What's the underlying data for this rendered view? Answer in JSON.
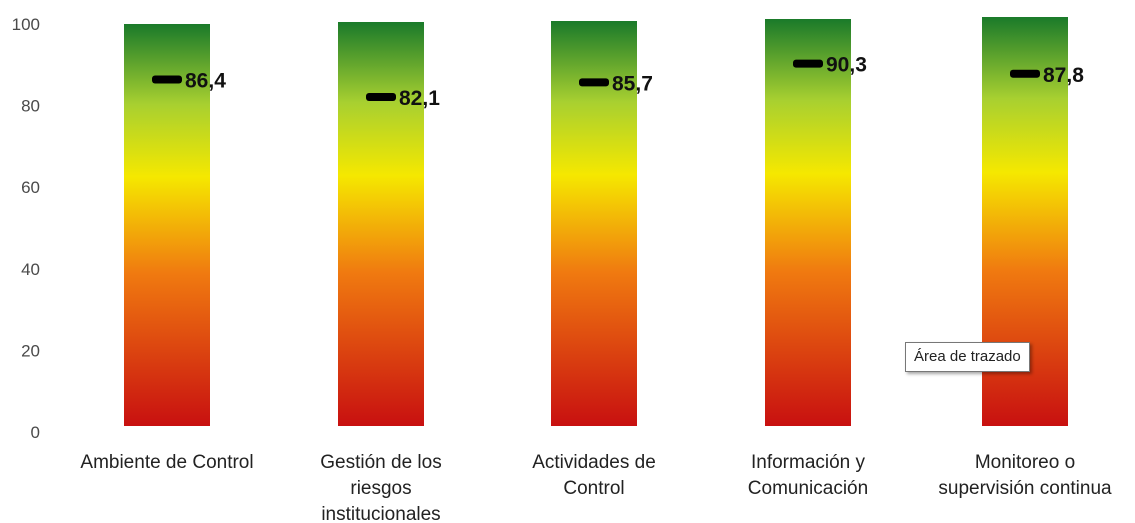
{
  "chart_data": {
    "type": "bar",
    "categories": [
      [
        "Ambiente de Control"
      ],
      [
        "Gestión de los",
        "riesgos",
        "institucionales"
      ],
      [
        "Actividades de",
        "Control"
      ],
      [
        "Información y",
        "Comunicación"
      ],
      [
        "Monitoreo o",
        "supervisión continua"
      ]
    ],
    "values": [
      86.4,
      82.1,
      85.7,
      90.3,
      87.8
    ],
    "value_labels": [
      "86,4",
      "82,1",
      "85,7",
      "90,3",
      "87,8"
    ],
    "ylim": [
      0,
      100
    ],
    "yticks": [
      0,
      20,
      40,
      60,
      80,
      100
    ],
    "title": "",
    "xlabel": "",
    "ylabel": "",
    "grid": false,
    "legend": "none",
    "gradient_colors": {
      "top": "#1a7a2a",
      "upper": "#a8d030",
      "middle": "#f5e800",
      "lower": "#f07a10",
      "bottom": "#c81010"
    },
    "marker_color": "#000000"
  },
  "tooltip": {
    "text": "Área de trazado"
  }
}
